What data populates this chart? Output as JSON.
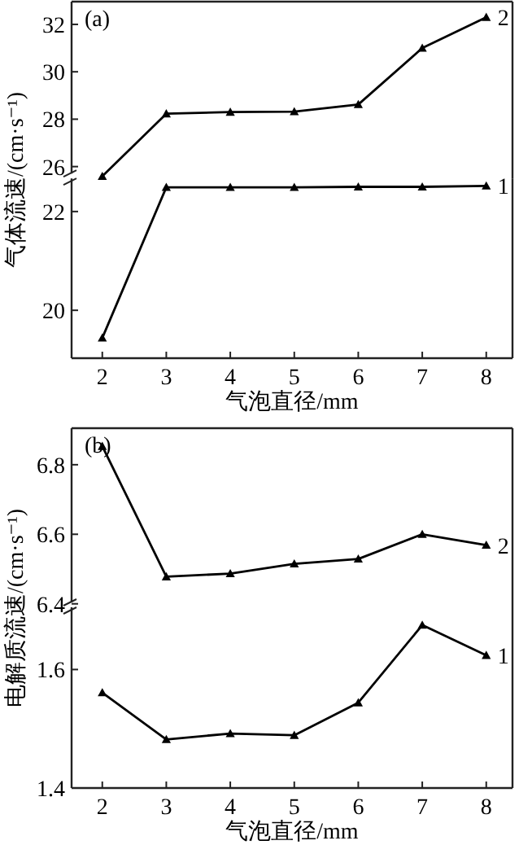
{
  "chart_data": [
    {
      "type": "line",
      "ylabel": "气体流速/(cm·s⁻¹)",
      "annotations": [
        "(a)"
      ],
      "x": [
        2,
        3,
        4,
        5,
        6,
        7,
        8
      ],
      "xlim": [
        1.52,
        8.41
      ],
      "ylim": [
        25.5,
        32.96
      ],
      "yticks": [
        26,
        28,
        30,
        32
      ],
      "tick_labels": "y",
      "grid": false,
      "series": [
        {
          "name": "2",
          "color": "#000000",
          "marker": "triangle",
          "values": [
            25.59,
            28.23,
            28.3,
            28.32,
            28.62,
            31.0,
            32.3
          ]
        }
      ]
    },
    {
      "type": "line",
      "xlabel": "气泡直径/mm",
      "x": [
        2,
        3,
        4,
        5,
        6,
        7,
        8
      ],
      "xlim": [
        1.52,
        8.41
      ],
      "xticks": [
        2,
        3,
        4,
        5,
        6,
        7,
        8
      ],
      "ylim": [
        19.03,
        22.67
      ],
      "yticks": [
        20,
        22
      ],
      "grid": false,
      "series": [
        {
          "name": "1",
          "color": "#000000",
          "marker": "triangle",
          "values": [
            19.44,
            22.49,
            22.49,
            22.49,
            22.5,
            22.5,
            22.52
          ]
        }
      ]
    },
    {
      "type": "line",
      "ylabel": "电解质流速/(cm·s⁻¹)",
      "annotations": [
        "(b)"
      ],
      "x": [
        2,
        3,
        4,
        5,
        6,
        7,
        8
      ],
      "xlim": [
        1.52,
        8.41
      ],
      "ylim": [
        6.39,
        6.905
      ],
      "yticks": [
        6.4,
        6.6,
        6.8
      ],
      "tick_labels": "y",
      "grid": false,
      "series": [
        {
          "name": "2",
          "color": "#000000",
          "marker": "triangle",
          "values": [
            6.853,
            6.478,
            6.487,
            6.515,
            6.529,
            6.6,
            6.569
          ]
        }
      ]
    },
    {
      "type": "line",
      "xlabel": "气泡直径/mm",
      "x": [
        2,
        3,
        4,
        5,
        6,
        7,
        8
      ],
      "xlim": [
        1.52,
        8.41
      ],
      "xticks": [
        2,
        3,
        4,
        5,
        6,
        7,
        8
      ],
      "ylim": [
        1.4,
        1.705
      ],
      "yticks": [
        1.4,
        1.6
      ],
      "grid": false,
      "series": [
        {
          "name": "1",
          "color": "#000000",
          "marker": "triangle",
          "values": [
            1.561,
            1.482,
            1.492,
            1.489,
            1.544,
            1.675,
            1.624
          ]
        }
      ]
    }
  ]
}
